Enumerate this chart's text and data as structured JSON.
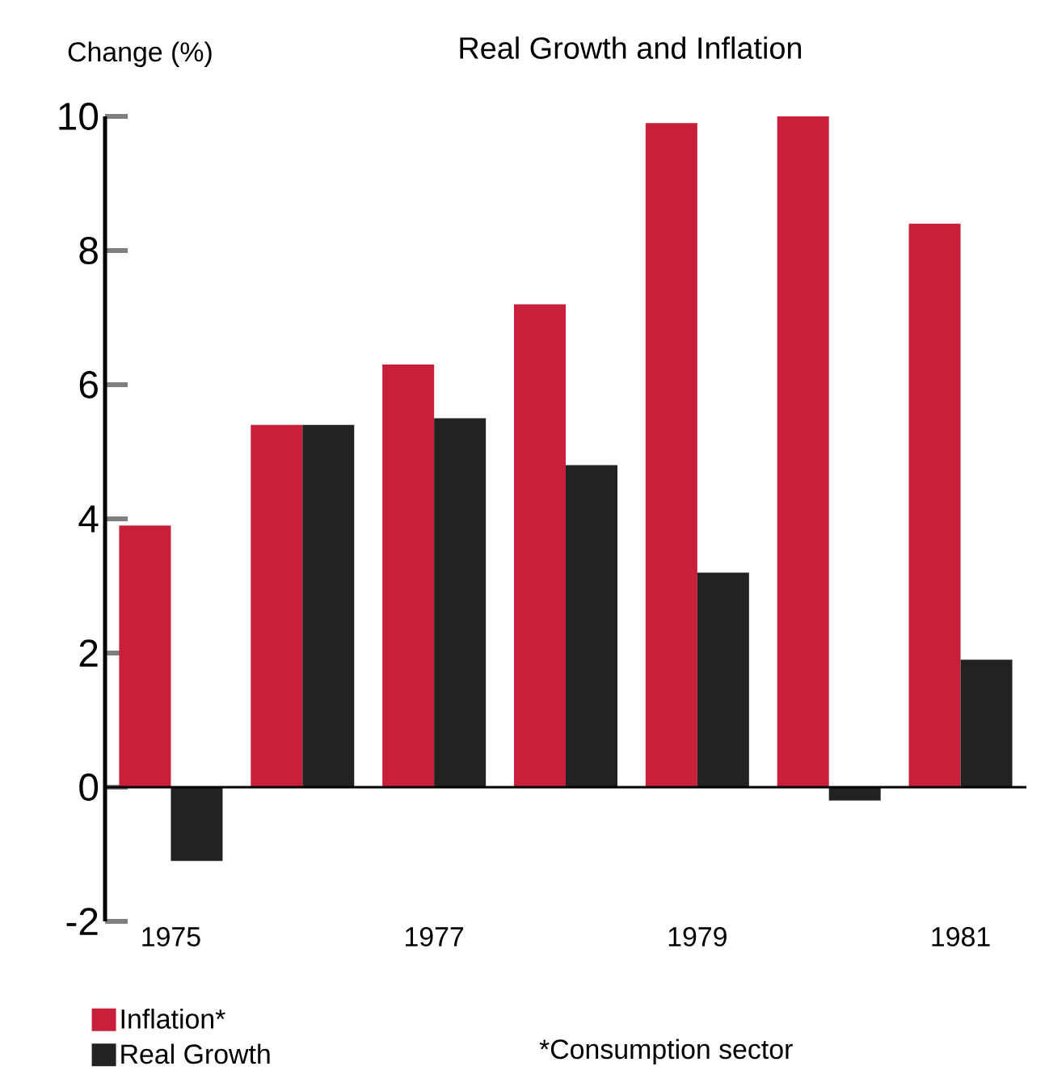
{
  "chart_data": {
    "type": "bar",
    "title": "Real Growth and Inflation",
    "ylabel": "Change (%)",
    "categories": [
      "1975",
      null,
      "1977",
      null,
      "1979",
      null,
      "1981"
    ],
    "series": [
      {
        "name": "Inflation*",
        "color": "#c8203a",
        "values": [
          3.9,
          5.4,
          6.3,
          7.2,
          9.9,
          10.0,
          8.4
        ]
      },
      {
        "name": "Real Growth",
        "color": "#222222",
        "values": [
          -1.1,
          5.4,
          5.5,
          4.8,
          3.2,
          -0.2,
          1.9
        ]
      }
    ],
    "ylim": [
      -2,
      10
    ],
    "yticks": [
      -2,
      0,
      2,
      4,
      6,
      8,
      10
    ],
    "ref_lines": [
      {
        "axis": "y",
        "value": 0
      }
    ],
    "annotations": [
      "*Consumption sector"
    ],
    "legend": "bottom left"
  }
}
